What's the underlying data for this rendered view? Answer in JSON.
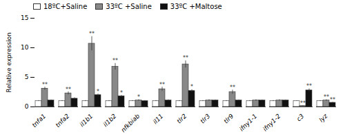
{
  "chart_data": {
    "type": "bar",
    "categories": [
      "tnfa1",
      "tnfa2",
      "il1b1",
      "il1b2",
      "nfkbiab",
      "il11",
      "tlr2",
      "tlr3",
      "tlr9",
      "ifny1-1",
      "ifny1-2",
      "c3",
      "lyz"
    ],
    "series": [
      {
        "name": "18ºC+Saline",
        "color": "#ffffff",
        "values": [
          1.0,
          1.0,
          1.0,
          1.0,
          1.0,
          1.0,
          1.0,
          1.0,
          1.0,
          1.0,
          1.0,
          1.0,
          1.0
        ],
        "errors": [
          0.08,
          0.08,
          0.08,
          0.08,
          0.08,
          0.08,
          0.08,
          0.08,
          0.08,
          0.08,
          0.08,
          0.05,
          0.08
        ],
        "significance": [
          null,
          null,
          null,
          null,
          null,
          null,
          null,
          null,
          null,
          null,
          null,
          null,
          null
        ]
      },
      {
        "name": "33ºC +Saline",
        "color": "#888888",
        "values": [
          3.1,
          2.3,
          10.7,
          6.8,
          1.1,
          3.0,
          7.2,
          1.1,
          2.5,
          1.1,
          1.1,
          0.15,
          1.1
        ],
        "errors": [
          0.25,
          0.25,
          1.2,
          0.55,
          0.12,
          0.35,
          0.6,
          0.12,
          0.35,
          0.12,
          0.12,
          0.05,
          0.12
        ],
        "significance": [
          "**",
          "**",
          "**",
          "**",
          "*",
          "**",
          "**",
          null,
          "**",
          null,
          null,
          "**",
          "**"
        ]
      },
      {
        "name": "33ºC +Maltose",
        "color": "#111111",
        "values": [
          1.1,
          1.4,
          2.0,
          1.8,
          1.0,
          1.1,
          2.7,
          1.1,
          1.1,
          1.1,
          1.1,
          2.8,
          0.7
        ],
        "errors": [
          0.08,
          0.15,
          0.18,
          0.15,
          0.08,
          0.1,
          0.22,
          0.08,
          0.08,
          0.08,
          0.08,
          0.25,
          0.08
        ],
        "significance": [
          null,
          null,
          "*",
          "*",
          null,
          null,
          "*",
          null,
          null,
          null,
          null,
          "**",
          "**"
        ]
      }
    ],
    "ylabel": "Relative expression",
    "ylim": [
      0,
      15
    ],
    "yticks": [
      0,
      5,
      10,
      15
    ],
    "legend": "upper left"
  }
}
